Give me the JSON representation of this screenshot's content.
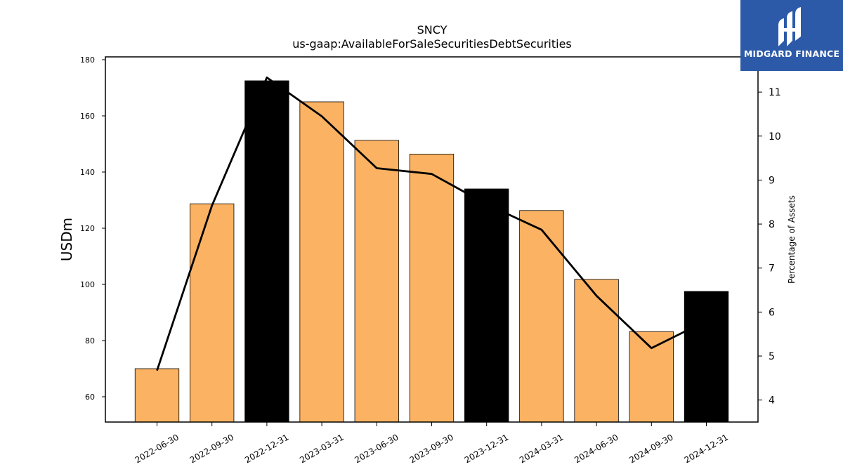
{
  "chart_data": {
    "type": "bar",
    "title": "SNCY",
    "subtitle": "us-gaap:AvailableForSaleSecuritiesDebtSecurities",
    "ylabel": "USDm",
    "y2label": "Percentage of Assets",
    "categories": [
      "2022-06-30",
      "2022-09-30",
      "2022-12-31",
      "2023-03-31",
      "2023-06-30",
      "2023-09-30",
      "2023-12-31",
      "2024-03-31",
      "2024-06-30",
      "2024-09-30",
      "2024-12-31"
    ],
    "values": [
      70.0,
      128.7,
      172.5,
      165.0,
      151.3,
      146.4,
      134.0,
      126.3,
      101.8,
      83.2,
      97.5
    ],
    "year_end_highlight": [
      false,
      false,
      true,
      false,
      false,
      false,
      true,
      false,
      false,
      false,
      true
    ],
    "line_series": {
      "values": [
        4.67,
        8.42,
        11.33,
        10.45,
        9.27,
        9.14,
        8.45,
        7.87,
        6.37,
        5.18,
        5.8
      ]
    },
    "ylim": [
      51,
      181
    ],
    "y2lim": [
      3.5,
      11.8
    ],
    "yticks": [
      60,
      80,
      100,
      120,
      140,
      160,
      180
    ],
    "y2ticks": [
      4,
      5,
      6,
      7,
      8,
      9,
      10,
      11
    ],
    "grid": false,
    "colors": {
      "bar": "#fbb363",
      "bar_highlight": "#000000",
      "line": "#000000"
    }
  },
  "logo": {
    "text": "MIDGARD FINANCE",
    "background": "#2c5aa8"
  }
}
